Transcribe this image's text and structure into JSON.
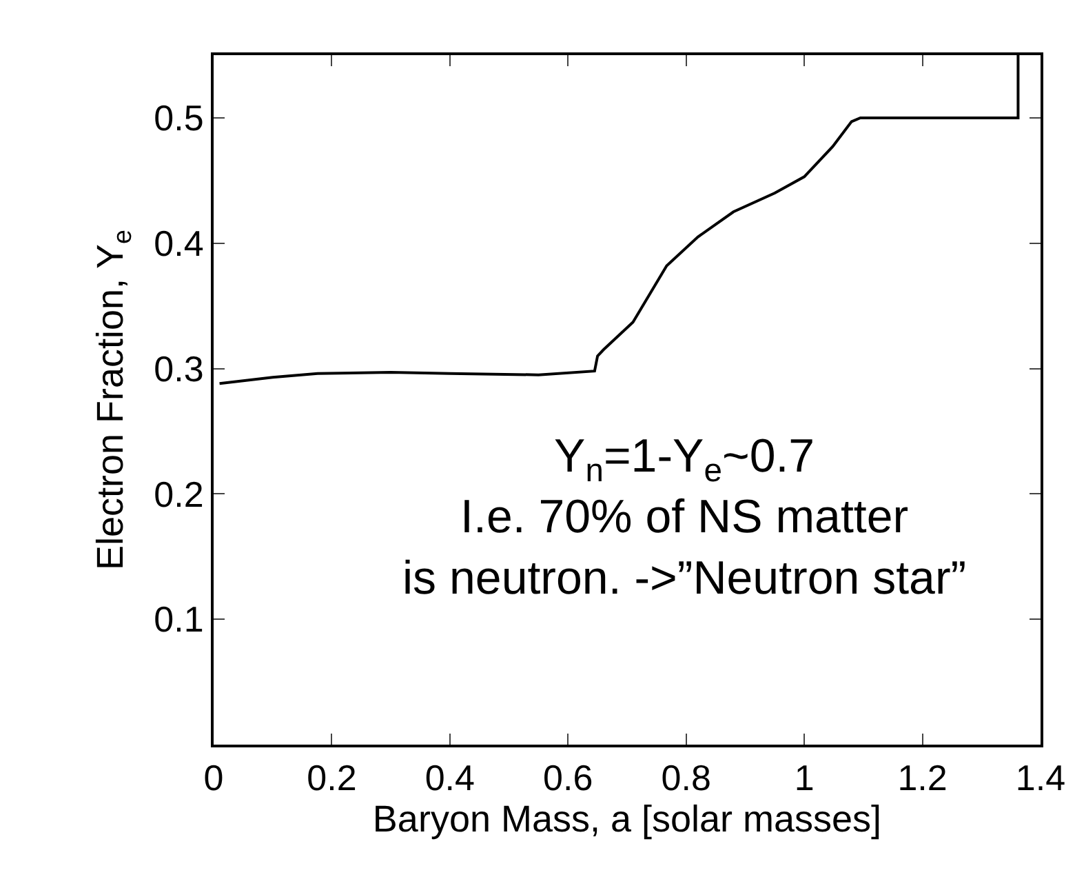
{
  "chart_data": {
    "type": "line",
    "xlabel": "Baryon Mass, a [solar masses]",
    "ylabel": "Electron Fraction, Y$_{e}$",
    "x": [
      0.01,
      0.1,
      0.176,
      0.3,
      0.4,
      0.55,
      0.645,
      0.65,
      0.66,
      0.71,
      0.767,
      0.82,
      0.88,
      0.95,
      1.0,
      1.048,
      1.08,
      1.095,
      1.362,
      1.362
    ],
    "series": [
      {
        "color": "#000000",
        "values": [
          0.288,
          0.293,
          0.296,
          0.297,
          0.296,
          0.295,
          0.298,
          0.31,
          0.315,
          0.337,
          0.382,
          0.405,
          0.425,
          0.44,
          0.453,
          0.477,
          0.497,
          0.5,
          0.5,
          0.55
        ]
      }
    ],
    "xlim": [
      0,
      1.4
    ],
    "xticks": [
      0,
      0.2,
      0.4,
      0.6,
      0.8,
      1,
      1.2,
      1.4
    ],
    "ylim": [
      0,
      0.55
    ],
    "yticks": [
      0.1,
      0.2,
      0.3,
      0.4,
      0.5
    ],
    "grid": false,
    "legend": false,
    "marker": "none",
    "line_style": "solid",
    "annotations": [
      "Y$_{n}$=1-Y$_{e}$~0.7\nI.e. 70% of NS matter\nis neutron. ->”Neutron star”"
    ]
  }
}
